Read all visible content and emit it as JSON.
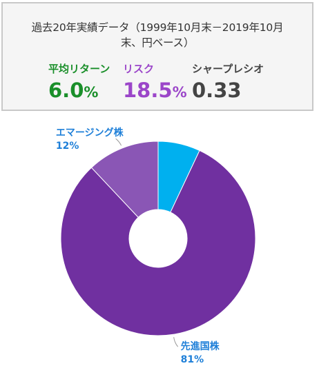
{
  "panel": {
    "title_line1": "過去20年実績データ（1999年10月末－2019年10月",
    "title_line2": "末、円ベース）",
    "metrics": {
      "return": {
        "label": "平均リターン",
        "value": "6.0",
        "unit": "%",
        "color": "#1a8f2a"
      },
      "risk": {
        "label": "リスク",
        "value": "18.5",
        "unit": "%",
        "color": "#9b46c9"
      },
      "sharpe": {
        "label": "シャープレシオ",
        "value": "0.33",
        "color": "#444444"
      }
    }
  },
  "chart_data": {
    "type": "pie",
    "style": "donut",
    "start_angle_deg": 0,
    "direction": "clockwise",
    "label_color": "#1e7fd8",
    "slices": [
      {
        "name": "",
        "value": 7,
        "color": "#00b0ef",
        "label": false
      },
      {
        "name": "先進国株",
        "value": 81,
        "value_label": "81%",
        "color": "#7030a0",
        "label": true
      },
      {
        "name": "エマージング株",
        "value": 12,
        "value_label": "12%",
        "color": "#8a56b5",
        "label": true
      }
    ]
  }
}
